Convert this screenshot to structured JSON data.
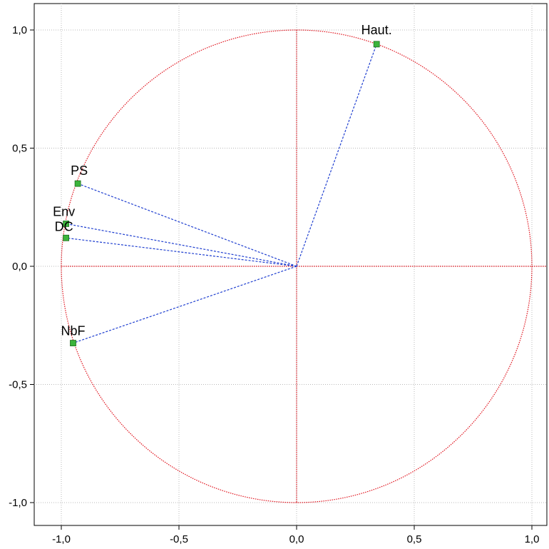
{
  "chart_data": {
    "type": "scatter",
    "title": "",
    "xlabel": "",
    "ylabel": "",
    "xlim": [
      -1.1,
      1.06
    ],
    "ylim": [
      -1.1,
      1.1
    ],
    "grid": true,
    "x_ticks": [
      -1.0,
      -0.5,
      0.0,
      0.5,
      1.0
    ],
    "y_ticks": [
      -1.0,
      -0.5,
      0.0,
      0.5,
      1.0
    ],
    "x_tick_labels": [
      "-1,0",
      "-0,5",
      "0,0",
      "0,5",
      "1,0"
    ],
    "y_tick_labels": [
      "-1,0",
      "-0,5",
      "0,0",
      "0,5",
      "1,0"
    ],
    "unit_circle": {
      "radius": 1.0,
      "color": "#e0141e"
    },
    "axis_line_color": "#e0141e",
    "vector_color": "#1f3fd0",
    "marker_color": "#3cb43c",
    "points": [
      {
        "label": "Haut.",
        "x": 0.34,
        "y": 0.94
      },
      {
        "label": "PS",
        "x": -0.93,
        "y": 0.35
      },
      {
        "label": "Env",
        "x": -0.98,
        "y": 0.18
      },
      {
        "label": "DC",
        "x": -0.98,
        "y": 0.12
      },
      {
        "label": "NbF",
        "x": -0.95,
        "y": -0.325
      }
    ]
  }
}
